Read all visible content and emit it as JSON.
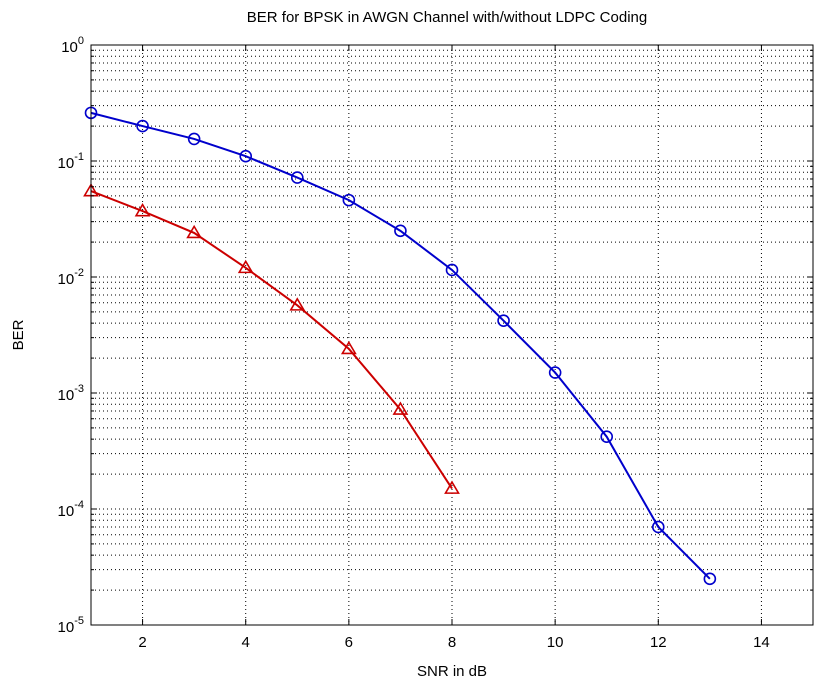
{
  "chart_data": {
    "type": "line",
    "title": "BER for BPSK in AWGN Channel with/without LDPC Coding",
    "xlabel": "SNR in dB",
    "ylabel": "BER",
    "xlim": [
      1,
      15
    ],
    "ylim": [
      1e-05,
      1
    ],
    "yscale": "log",
    "grid": true,
    "x_ticks": [
      2,
      4,
      6,
      8,
      10,
      12,
      14
    ],
    "y_ticks": [
      {
        "value": 1,
        "base": "10",
        "exp": "0"
      },
      {
        "value": 0.1,
        "base": "10",
        "exp": "-1"
      },
      {
        "value": 0.01,
        "base": "10",
        "exp": "-2"
      },
      {
        "value": 0.001,
        "base": "10",
        "exp": "-3"
      },
      {
        "value": 0.0001,
        "base": "10",
        "exp": "-4"
      },
      {
        "value": 1e-05,
        "base": "10",
        "exp": "-5"
      }
    ],
    "series": [
      {
        "color": "#0000cc",
        "marker": "circle",
        "x": [
          1,
          2,
          3,
          4,
          5,
          6,
          7,
          8,
          9,
          10,
          11,
          12,
          13
        ],
        "y": [
          0.26,
          0.2,
          0.155,
          0.11,
          0.072,
          0.046,
          0.025,
          0.0115,
          0.0042,
          0.0015,
          0.00042,
          7e-05,
          2.5e-05
        ]
      },
      {
        "color": "#cc0000",
        "marker": "triangle",
        "x": [
          1,
          2,
          3,
          4,
          5,
          6,
          7,
          8
        ],
        "y": [
          0.055,
          0.037,
          0.024,
          0.012,
          0.0057,
          0.0024,
          0.00072,
          0.00015
        ]
      }
    ]
  }
}
